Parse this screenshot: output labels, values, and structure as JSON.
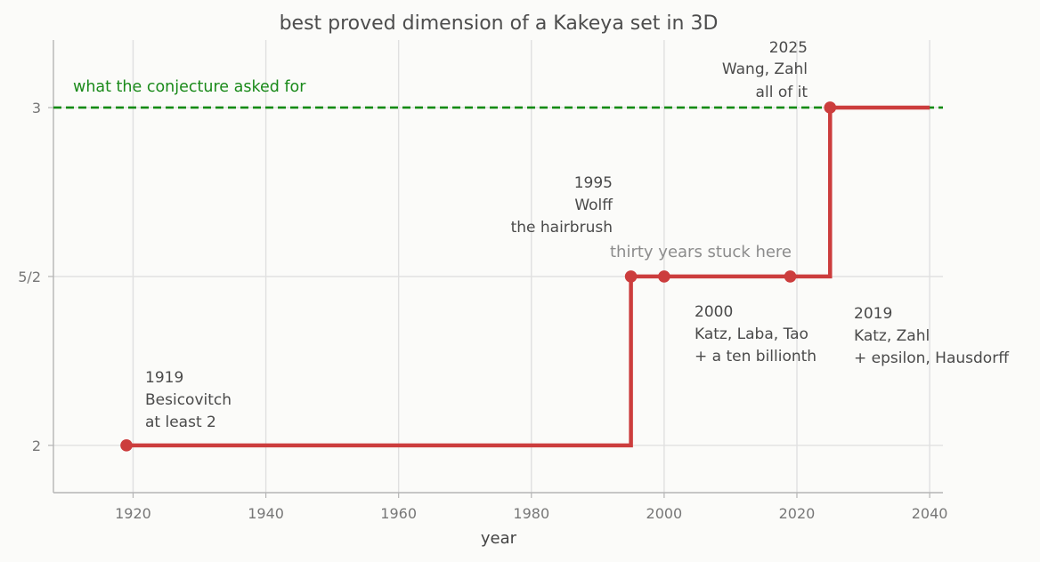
{
  "chart_data": {
    "type": "line",
    "title": "best proved dimension of a Kakeya set in 3D",
    "xlabel": "year",
    "ylabel": "",
    "xlim": [
      1908,
      2042
    ],
    "ylim": [
      1.86,
      3.2
    ],
    "x_ticks": [
      1920,
      1940,
      1960,
      1980,
      2000,
      2020,
      2040
    ],
    "y_ticks": [
      {
        "value": 2,
        "label": "2"
      },
      {
        "value": 2.5,
        "label": "5/2"
      },
      {
        "value": 3,
        "label": "3"
      }
    ],
    "grid": true,
    "series": [
      {
        "step": "post",
        "color": "#cc3d3d",
        "x": [
          1919,
          1995,
          2000,
          2019,
          2025,
          2040
        ],
        "y": [
          2,
          2.5,
          2.5,
          2.5,
          3,
          3
        ]
      }
    ],
    "markers": [
      {
        "x": 1919,
        "y": 2
      },
      {
        "x": 1995,
        "y": 2.5
      },
      {
        "x": 2000,
        "y": 2.5
      },
      {
        "x": 2019,
        "y": 2.5
      },
      {
        "x": 2025,
        "y": 3
      }
    ],
    "reference_line": {
      "y": 3,
      "style": "dashed",
      "color": "#138a13",
      "label": "what the conjecture asked for"
    },
    "annotations": [
      {
        "year": "1919",
        "lines": [
          "Besicovitch",
          "at least 2"
        ]
      },
      {
        "year": "1995",
        "lines": [
          "Wolff",
          "the hairbrush"
        ]
      },
      {
        "year": "2000",
        "lines": [
          "Katz, Laba, Tao",
          "+ a ten billionth"
        ]
      },
      {
        "year": "2019",
        "lines": [
          "Katz, Zahl",
          "+ epsilon, Hausdorff"
        ]
      },
      {
        "year": "2025",
        "lines": [
          "Wang, Zahl",
          "all of it"
        ]
      }
    ],
    "plateau_label": "thirty years stuck here"
  }
}
